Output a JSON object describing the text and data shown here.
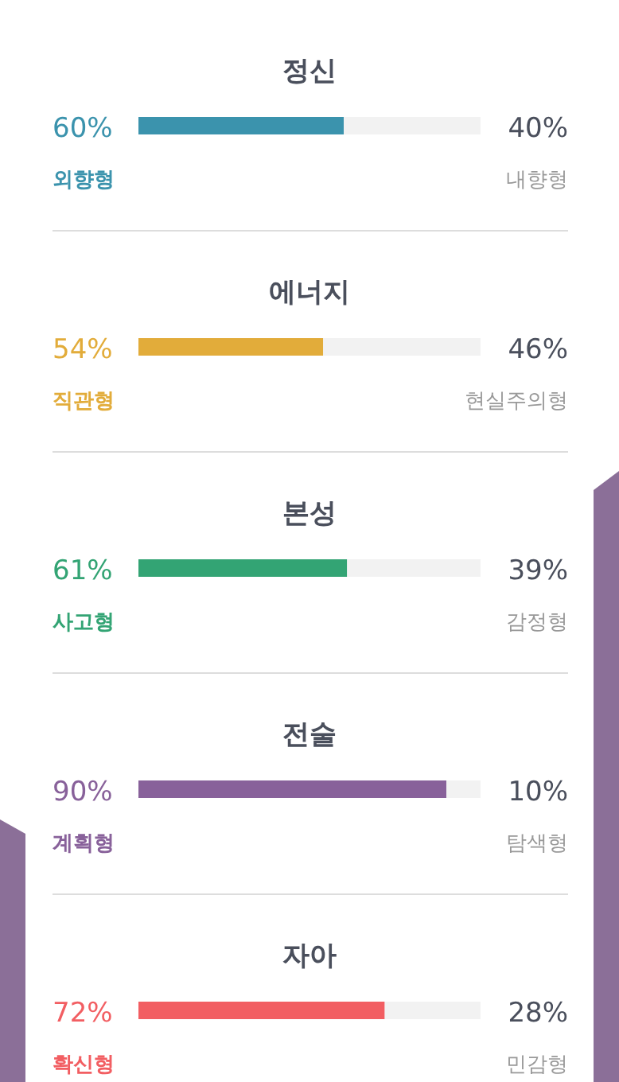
{
  "chart_data": [
    {
      "type": "bar",
      "orientation": "horizontal",
      "stacked": true,
      "title": "정신",
      "categories": [
        null
      ],
      "series": [
        {
          "name": "외향형",
          "color": "#3b93ad",
          "values": [
            60
          ],
          "value_labels": [
            "60%"
          ]
        },
        {
          "name": "내향형",
          "color": "#f2f2f2",
          "values": [
            40
          ],
          "value_labels": [
            "40%"
          ]
        }
      ]
    },
    {
      "type": "bar",
      "orientation": "horizontal",
      "stacked": true,
      "title": "에너지",
      "categories": [
        null
      ],
      "series": [
        {
          "name": "직관형",
          "color": "#e2ac3a",
          "values": [
            54
          ],
          "value_labels": [
            "54%"
          ]
        },
        {
          "name": "현실주의형",
          "color": "#f2f2f2",
          "values": [
            46
          ],
          "value_labels": [
            "46%"
          ]
        }
      ]
    },
    {
      "type": "bar",
      "orientation": "horizontal",
      "stacked": true,
      "title": "본성",
      "categories": [
        null
      ],
      "series": [
        {
          "name": "사고형",
          "color": "#33a474",
          "values": [
            61
          ],
          "value_labels": [
            "61%"
          ]
        },
        {
          "name": "감정형",
          "color": "#f2f2f2",
          "values": [
            39
          ],
          "value_labels": [
            "39%"
          ]
        }
      ]
    },
    {
      "type": "bar",
      "orientation": "horizontal",
      "stacked": true,
      "title": "전술",
      "categories": [
        null
      ],
      "series": [
        {
          "name": "계획형",
          "color": "#88619a",
          "values": [
            90
          ],
          "value_labels": [
            "90%"
          ]
        },
        {
          "name": "탐색형",
          "color": "#f2f2f2",
          "values": [
            10
          ],
          "value_labels": [
            "10%"
          ]
        }
      ]
    },
    {
      "type": "bar",
      "orientation": "horizontal",
      "stacked": true,
      "title": "자아",
      "categories": [
        null
      ],
      "series": [
        {
          "name": "확신형",
          "color": "#f25e62",
          "values": [
            72
          ],
          "value_labels": [
            "72%"
          ]
        },
        {
          "name": "민감형",
          "color": "#f2f2f2",
          "values": [
            28
          ],
          "value_labels": [
            "28%"
          ]
        }
      ]
    }
  ]
}
